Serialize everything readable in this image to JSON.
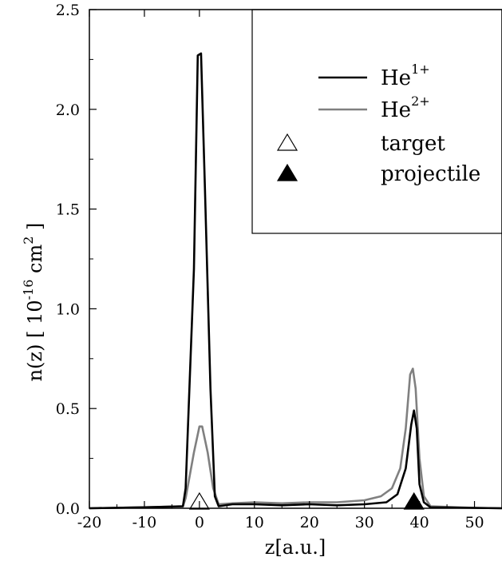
{
  "chart_data": {
    "type": "line",
    "xlabel": "z[a.u.]",
    "ylabel": {
      "prefix": "n(z) [ 10",
      "exp": "-16",
      "unit": " cm",
      "unit_exp": "2",
      "suffix": " ]"
    },
    "xlim": [
      -20,
      55
    ],
    "ylim": [
      0,
      2.5
    ],
    "xticks": [
      "-20",
      "-10",
      "0",
      "10",
      "20",
      "30",
      "40",
      "50"
    ],
    "xtick_values": [
      -20,
      -10,
      0,
      10,
      20,
      30,
      40,
      50
    ],
    "yticks": [
      "0.0",
      "0.5",
      "1.0",
      "1.5",
      "2.0",
      "2.5"
    ],
    "ytick_values": [
      0,
      0.5,
      1.0,
      1.5,
      2.0,
      2.5
    ],
    "grid": false,
    "legend_position": "top-right",
    "series": [
      {
        "name": "He",
        "sup": "1+",
        "color": "#000000",
        "points": [
          [
            -20,
            0.0
          ],
          [
            -10,
            0.005
          ],
          [
            -3,
            0.01
          ],
          [
            -2.5,
            0.1
          ],
          [
            -1,
            1.2
          ],
          [
            -0.3,
            2.27
          ],
          [
            0.3,
            2.28
          ],
          [
            1,
            1.6
          ],
          [
            2,
            0.6
          ],
          [
            2.8,
            0.06
          ],
          [
            3.5,
            0.01
          ],
          [
            6,
            0.02
          ],
          [
            10,
            0.02
          ],
          [
            15,
            0.015
          ],
          [
            20,
            0.02
          ],
          [
            25,
            0.015
          ],
          [
            30,
            0.02
          ],
          [
            34,
            0.03
          ],
          [
            36,
            0.07
          ],
          [
            37.5,
            0.2
          ],
          [
            38.5,
            0.42
          ],
          [
            39,
            0.49
          ],
          [
            39.5,
            0.4
          ],
          [
            40,
            0.12
          ],
          [
            40.8,
            0.03
          ],
          [
            42,
            0.005
          ],
          [
            50,
            0.002
          ],
          [
            55,
            0.0
          ]
        ]
      },
      {
        "name": "He",
        "sup": "2+",
        "color": "#808080",
        "points": [
          [
            -20,
            0.0
          ],
          [
            -10,
            0.005
          ],
          [
            -3,
            0.01
          ],
          [
            -2.5,
            0.05
          ],
          [
            -1,
            0.28
          ],
          [
            0,
            0.41
          ],
          [
            0.5,
            0.41
          ],
          [
            1.5,
            0.28
          ],
          [
            2.5,
            0.1
          ],
          [
            3.5,
            0.02
          ],
          [
            6,
            0.025
          ],
          [
            10,
            0.03
          ],
          [
            15,
            0.025
          ],
          [
            20,
            0.03
          ],
          [
            25,
            0.03
          ],
          [
            30,
            0.04
          ],
          [
            33,
            0.06
          ],
          [
            35,
            0.1
          ],
          [
            36.5,
            0.2
          ],
          [
            37.5,
            0.4
          ],
          [
            38.3,
            0.67
          ],
          [
            38.8,
            0.7
          ],
          [
            39.3,
            0.6
          ],
          [
            40,
            0.25
          ],
          [
            40.8,
            0.06
          ],
          [
            42,
            0.01
          ],
          [
            50,
            0.002
          ],
          [
            55,
            0.0
          ]
        ]
      }
    ],
    "markers": [
      {
        "name": "target",
        "x": 0,
        "y": 0,
        "filled": false
      },
      {
        "name": "projectile",
        "x": 39,
        "y": 0,
        "filled": true
      }
    ]
  }
}
